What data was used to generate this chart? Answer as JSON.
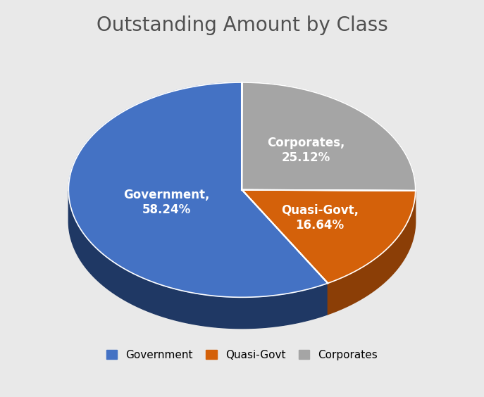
{
  "title": "Outstanding Amount by Class",
  "slices": [
    {
      "label": "Government",
      "value": 58.24,
      "color": "#4472C4",
      "dark_color": "#1F3864"
    },
    {
      "label": "Quasi-Govt",
      "value": 16.64,
      "color": "#D4610A",
      "dark_color": "#8B3E06"
    },
    {
      "label": "Corporates",
      "value": 25.12,
      "color": "#A5A5A5",
      "dark_color": "#6B6B6B"
    }
  ],
  "label_texts": [
    "Government,\n58.24%",
    "Quasi-Govt,\n16.64%",
    "Corporates,\n25.12%"
  ],
  "legend_labels": [
    "Government",
    "Quasi-Govt",
    "Corporates"
  ],
  "legend_colors": [
    "#4472C4",
    "#D4610A",
    "#A5A5A5"
  ],
  "title_fontsize": 20,
  "label_fontsize": 12,
  "background_color": "#E9E9E9",
  "startangle": 90
}
